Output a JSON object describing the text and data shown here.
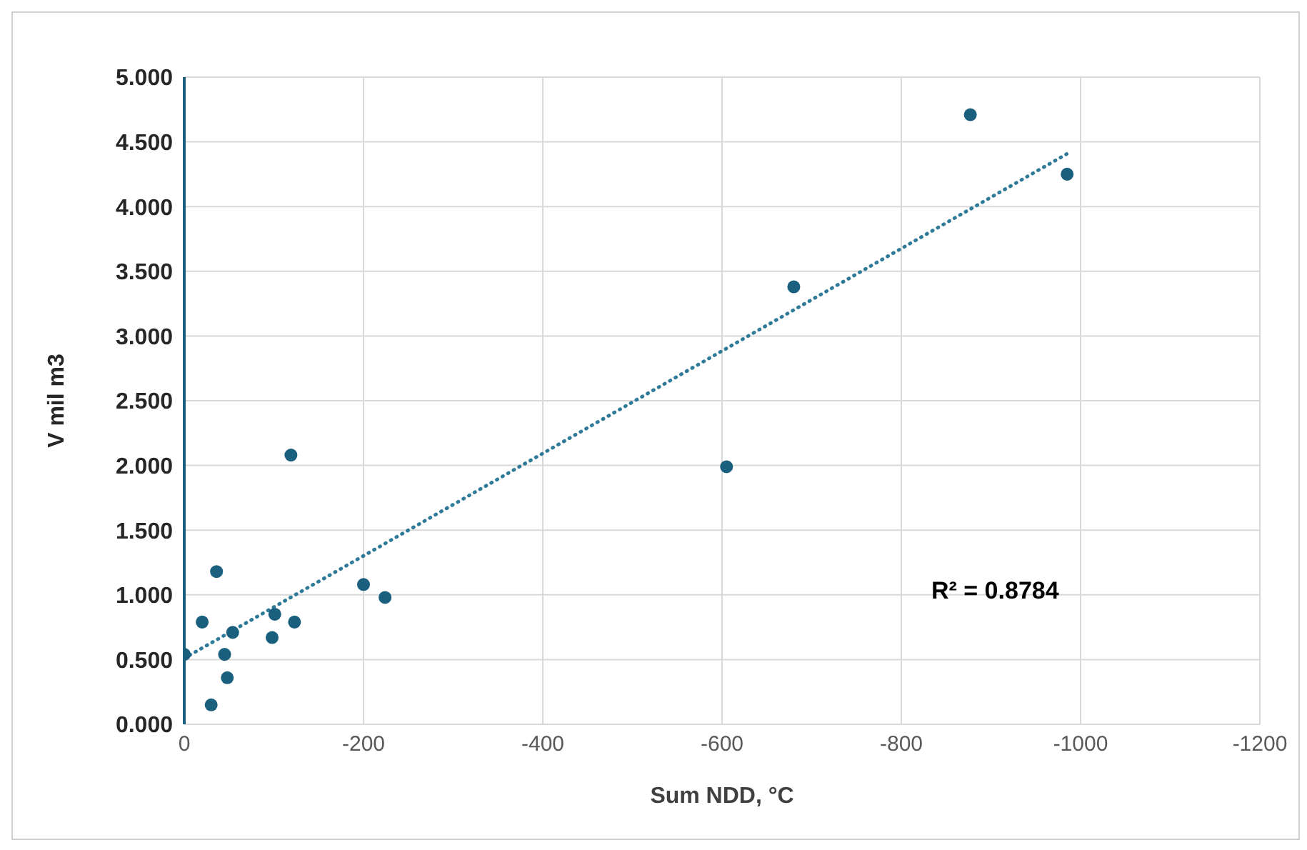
{
  "chart_data": {
    "type": "scatter",
    "xlabel": "Sum NDD, °C",
    "ylabel": "V mil m3",
    "xlim": [
      0,
      -1200
    ],
    "xticks": [
      0,
      -200,
      -400,
      -600,
      -800,
      -1000,
      -1200
    ],
    "ylim": [
      0,
      5
    ],
    "yticks": [
      {
        "value": 0,
        "label": "0.000"
      },
      {
        "value": 0.5,
        "label": "0.500"
      },
      {
        "value": 1,
        "label": "1.000"
      },
      {
        "value": 1.5,
        "label": "1.500"
      },
      {
        "value": 2,
        "label": "2.000"
      },
      {
        "value": 2.5,
        "label": "2.500"
      },
      {
        "value": 3,
        "label": "3.000"
      },
      {
        "value": 3.5,
        "label": "3.500"
      },
      {
        "value": 4,
        "label": "4.000"
      },
      {
        "value": 4.5,
        "label": "4.500"
      },
      {
        "value": 5,
        "label": "5.000"
      }
    ],
    "grid": true,
    "marker": "circle",
    "series": [
      {
        "color": "#1b5f7e",
        "x": [
          -877,
          -985,
          -680,
          -605,
          -119,
          -36,
          -200,
          -224,
          -20,
          -101,
          -123,
          -54,
          -98,
          0,
          -45,
          -48,
          -30
        ],
        "values": [
          4.71,
          4.25,
          3.38,
          1.99,
          2.08,
          1.18,
          1.08,
          0.98,
          0.79,
          0.85,
          0.79,
          0.71,
          0.67,
          0.54,
          0.54,
          0.36,
          0.15
        ]
      },
      {
        "type": "line",
        "color": "#2e7a98",
        "line_style": "dotted",
        "marker": "none",
        "x": [
          0,
          -988
        ],
        "values": [
          0.51,
          4.42
        ]
      }
    ],
    "annotations": [
      "R² = 0.8784"
    ]
  }
}
